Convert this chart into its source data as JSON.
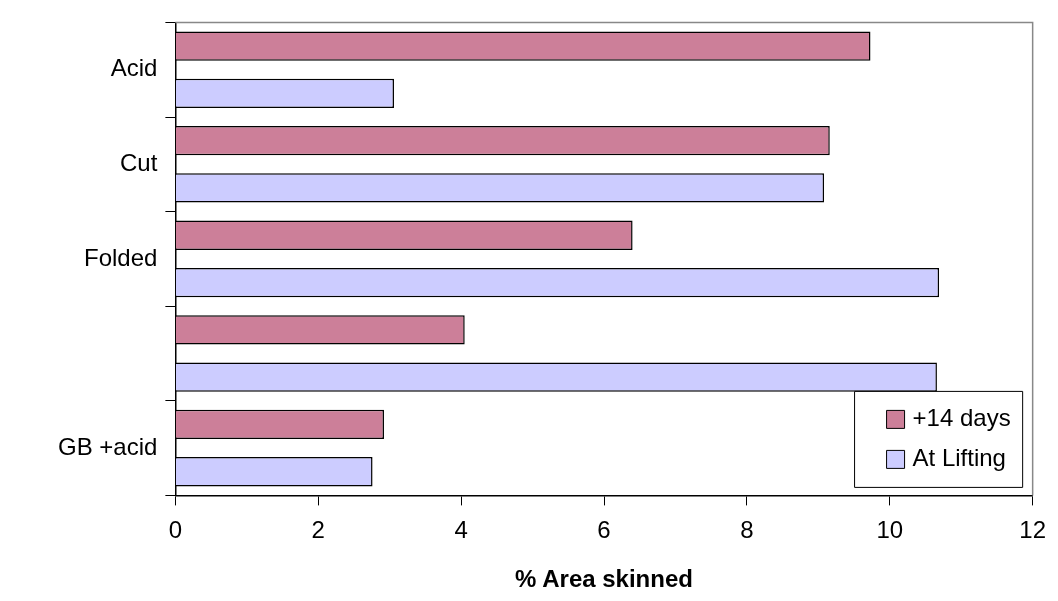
{
  "chart_data": {
    "type": "bar",
    "orientation": "horizontal",
    "xlabel": "% Area skinned",
    "categories": [
      "Acid",
      "Cut",
      "Folded",
      null,
      "GB +acid"
    ],
    "series": [
      {
        "name": "+14 days",
        "color": "#cc7f99",
        "values": [
          9.73,
          9.16,
          6.4,
          4.05,
          2.92
        ]
      },
      {
        "name": "At Lifting",
        "color": "#ccccff",
        "values": [
          3.06,
          9.08,
          10.69,
          10.66,
          2.76
        ]
      }
    ],
    "xlim": [
      0,
      12
    ],
    "xticks": [
      0,
      2,
      4,
      6,
      8,
      10,
      12
    ],
    "grid": false,
    "legend": "bottom right"
  }
}
